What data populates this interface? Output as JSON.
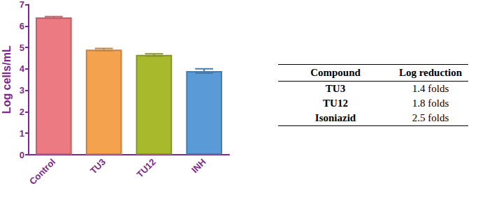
{
  "chart_data": {
    "type": "bar",
    "y_label": "Log cells/mL",
    "categories": [
      "Control",
      "TU3",
      "TU12",
      "INH"
    ],
    "values": [
      6.4,
      4.9,
      4.65,
      3.9
    ],
    "errors": [
      0.04,
      0.05,
      0.05,
      0.1
    ],
    "colors": [
      "#ec7a82",
      "#f4a24e",
      "#a9b92c",
      "#5a9ad6"
    ],
    "ylim": [
      0,
      7
    ],
    "yticks": [
      0,
      1,
      2,
      3,
      4,
      5,
      6,
      7
    ],
    "grid": false
  },
  "table": {
    "header": [
      "Compound",
      "Log reduction"
    ],
    "rows": [
      [
        "TU3",
        "1.4 folds"
      ],
      [
        "TU12",
        "1.8 folds"
      ],
      [
        "Isoniazid",
        "2.5 folds"
      ]
    ]
  }
}
